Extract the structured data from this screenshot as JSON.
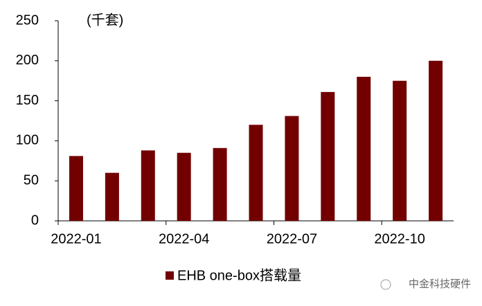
{
  "chart_data": {
    "type": "bar",
    "y_label": "(千套)",
    "categories": [
      "2022-01",
      null,
      null,
      "2022-04",
      null,
      null,
      "2022-07",
      null,
      null,
      "2022-10",
      null
    ],
    "series": [
      {
        "name": "EHB one-box搭载量",
        "color": "#720000",
        "values": [
          81,
          60,
          88,
          85,
          91,
          120,
          131,
          161,
          180,
          175,
          200
        ]
      }
    ],
    "ylim": [
      0,
      250
    ],
    "yticks": [
      0,
      50,
      100,
      150,
      200,
      250
    ],
    "grid": false
  },
  "watermark": "中金科技硬件"
}
